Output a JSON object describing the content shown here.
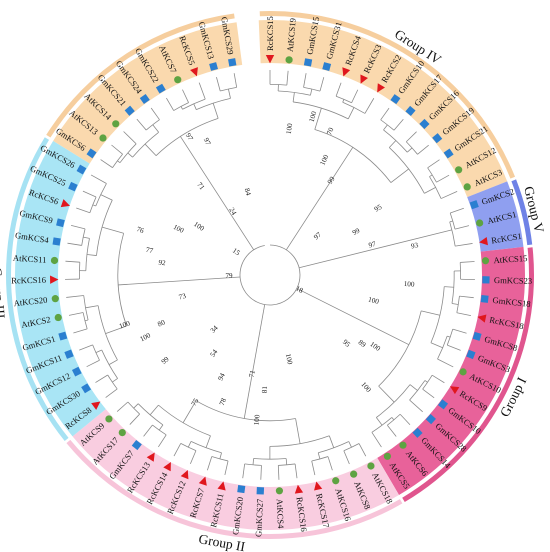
{
  "figure": {
    "groups": [
      {
        "id": "IV",
        "label": "Group IV",
        "fill": "#fad9ae",
        "band": "#f6ce9e"
      },
      {
        "id": "V",
        "label": "Group V",
        "fill": "#8f9ff0",
        "band": "#6f82e6"
      },
      {
        "id": "I",
        "label": "Group I",
        "fill": "#e8629a",
        "band": "#e0558e"
      },
      {
        "id": "II",
        "label": "Group II",
        "fill": "#f9cde0",
        "band": "#f7c4d9"
      },
      {
        "id": "III",
        "label": "Group III",
        "fill": "#a9e5f5",
        "band": "#a6e2f3"
      }
    ],
    "leaves": [
      {
        "name": "RcKCS15",
        "marker": "triangle",
        "group": "IV"
      },
      {
        "name": "AtKCS19",
        "marker": "circle",
        "group": "IV"
      },
      {
        "name": "GmKCS15",
        "marker": "square",
        "group": "IV"
      },
      {
        "name": "GmKCS31",
        "marker": "square",
        "group": "IV"
      },
      {
        "name": "RcKCS4",
        "marker": "triangle",
        "group": "IV"
      },
      {
        "name": "RcKCS3",
        "marker": "triangle",
        "group": "IV"
      },
      {
        "name": "RcKCS2",
        "marker": "triangle",
        "group": "IV"
      },
      {
        "name": "GmKCS10",
        "marker": "square",
        "group": "IV"
      },
      {
        "name": "GmKCS17",
        "marker": "square",
        "group": "IV"
      },
      {
        "name": "GmKCS16",
        "marker": "square",
        "group": "IV"
      },
      {
        "name": "GmKCS19",
        "marker": "square",
        "group": "IV"
      },
      {
        "name": "GmKCS21",
        "marker": "square",
        "group": "IV"
      },
      {
        "name": "AtKCS12",
        "marker": "circle",
        "group": "IV"
      },
      {
        "name": "AtKCS3",
        "marker": "circle",
        "group": "IV"
      },
      {
        "name": "GmKCS2",
        "marker": "square",
        "group": "V"
      },
      {
        "name": "AtKCS1",
        "marker": "circle",
        "group": "V"
      },
      {
        "name": "RcKCS1",
        "marker": "triangle",
        "group": "V"
      },
      {
        "name": "AtKCS15",
        "marker": "circle",
        "group": "I"
      },
      {
        "name": "GmKCS23",
        "marker": "square",
        "group": "I"
      },
      {
        "name": "GmKCS18",
        "marker": "square",
        "group": "I"
      },
      {
        "name": "RcKCS18",
        "marker": "triangle",
        "group": "I"
      },
      {
        "name": "GmKCS8",
        "marker": "square",
        "group": "I"
      },
      {
        "name": "GmKCS3",
        "marker": "square",
        "group": "I"
      },
      {
        "name": "AtKCS10",
        "marker": "circle",
        "group": "I"
      },
      {
        "name": "RcKCS9",
        "marker": "triangle",
        "group": "I"
      },
      {
        "name": "GmKCS10",
        "marker": "square",
        "group": "I"
      },
      {
        "name": "GmKCS28",
        "marker": "square",
        "group": "I"
      },
      {
        "name": "GmKCS14",
        "marker": "square",
        "group": "I"
      },
      {
        "name": "AtKCS6",
        "marker": "circle",
        "group": "I"
      },
      {
        "name": "AtKCS5",
        "marker": "circle",
        "group": "I"
      },
      {
        "name": "AtKCS18",
        "marker": "circle",
        "group": "II"
      },
      {
        "name": "AtKCS8",
        "marker": "circle",
        "group": "II"
      },
      {
        "name": "AtKCS16",
        "marker": "circle",
        "group": "II"
      },
      {
        "name": "RcKCS17",
        "marker": "triangle",
        "group": "II"
      },
      {
        "name": "RcKCS16",
        "marker": "triangle",
        "group": "II"
      },
      {
        "name": "AtKCS4",
        "marker": "circle",
        "group": "II"
      },
      {
        "name": "GmKCS27",
        "marker": "square",
        "group": "II"
      },
      {
        "name": "GmKCS20",
        "marker": "square",
        "group": "II"
      },
      {
        "name": "RcKCS11",
        "marker": "triangle",
        "group": "II"
      },
      {
        "name": "RcKCS7",
        "marker": "triangle",
        "group": "II"
      },
      {
        "name": "RcKCS12",
        "marker": "triangle",
        "group": "II"
      },
      {
        "name": "RcKCS14",
        "marker": "triangle",
        "group": "II"
      },
      {
        "name": "RcKCS13",
        "marker": "triangle",
        "group": "II"
      },
      {
        "name": "GmKCS7",
        "marker": "square",
        "group": "II"
      },
      {
        "name": "AtKCS17",
        "marker": "circle",
        "group": "II"
      },
      {
        "name": "AtKCS9",
        "marker": "circle",
        "group": "II"
      },
      {
        "name": "RcKCS8",
        "marker": "triangle",
        "group": "III"
      },
      {
        "name": "GmKCS30",
        "marker": "square",
        "group": "III"
      },
      {
        "name": "GmKCS12",
        "marker": "square",
        "group": "III"
      },
      {
        "name": "GmKCS11",
        "marker": "square",
        "group": "III"
      },
      {
        "name": "GmKCS1",
        "marker": "square",
        "group": "III"
      },
      {
        "name": "AtKCS2",
        "marker": "circle",
        "group": "III"
      },
      {
        "name": "AtKCS20",
        "marker": "circle",
        "group": "III"
      },
      {
        "name": "RcKCS16",
        "marker": "triangle",
        "group": "III"
      },
      {
        "name": "AtKCS11",
        "marker": "circle",
        "group": "III"
      },
      {
        "name": "GmKCS4",
        "marker": "square",
        "group": "III"
      },
      {
        "name": "GmKCS9",
        "marker": "square",
        "group": "III"
      },
      {
        "name": "RcKCS6",
        "marker": "triangle",
        "group": "III"
      },
      {
        "name": "GmKCS25",
        "marker": "square",
        "group": "III"
      },
      {
        "name": "GmKCS26",
        "marker": "square",
        "group": "III"
      },
      {
        "name": "GmKCS6",
        "marker": "square",
        "group": "IV"
      },
      {
        "name": "AtKCS13",
        "marker": "circle",
        "group": "IV"
      },
      {
        "name": "AtKCS14",
        "marker": "circle",
        "group": "IV"
      },
      {
        "name": "GmKCS21",
        "marker": "square",
        "group": "IV"
      },
      {
        "name": "GmKCS24",
        "marker": "square",
        "group": "IV"
      },
      {
        "name": "GmKCS22",
        "marker": "square",
        "group": "IV"
      },
      {
        "name": "AtKCS7",
        "marker": "circle",
        "group": "IV"
      },
      {
        "name": "RcKCS5",
        "marker": "triangle",
        "group": "IV"
      },
      {
        "name": "GmKCS13",
        "marker": "square",
        "group": "IV"
      },
      {
        "name": "GmKCS29",
        "marker": "square",
        "group": "IV"
      }
    ],
    "marker_colors": {
      "circle": "#5ea342",
      "square": "#2b7fd0",
      "triangle": "#e0171e"
    },
    "bootstrap": [
      {
        "value": "100",
        "at": 1.5,
        "r": 0.72
      },
      {
        "value": "100",
        "at": 5,
        "r": 0.62
      },
      {
        "value": "99",
        "at": 6.5,
        "r": 0.55
      },
      {
        "value": "70",
        "at": 4.5,
        "r": 0.76
      },
      {
        "value": "95",
        "at": 11.5,
        "r": 0.62
      },
      {
        "value": "99",
        "at": 12.5,
        "r": 0.47
      },
      {
        "value": "97",
        "at": 14.5,
        "r": 0.52
      },
      {
        "value": "93",
        "at": 15.5,
        "r": 0.72
      },
      {
        "value": "18",
        "at": 23,
        "r": 0.16
      },
      {
        "value": "100",
        "at": 18.5,
        "r": 0.68
      },
      {
        "value": "100",
        "at": 20.5,
        "r": 0.52
      },
      {
        "value": "100",
        "at": 24.5,
        "r": 0.62
      },
      {
        "value": "89",
        "at": 25,
        "r": 0.56
      },
      {
        "value": "95",
        "at": 26,
        "r": 0.5
      },
      {
        "value": "100",
        "at": 27.5,
        "r": 0.72
      },
      {
        "value": "100",
        "at": 33,
        "r": 0.42
      },
      {
        "value": "81",
        "at": 36,
        "r": 0.56
      },
      {
        "value": "71",
        "at": 37.5,
        "r": 0.49
      },
      {
        "value": "100",
        "at": 36.5,
        "r": 0.71
      },
      {
        "value": "78",
        "at": 39.5,
        "r": 0.66
      },
      {
        "value": "94",
        "at": 40.5,
        "r": 0.55
      },
      {
        "value": "75",
        "at": 41.5,
        "r": 0.72
      },
      {
        "value": "54",
        "at": 42.5,
        "r": 0.47
      },
      {
        "value": "34",
        "at": 44.5,
        "r": 0.38
      },
      {
        "value": "99",
        "at": 45.5,
        "r": 0.66
      },
      {
        "value": "80",
        "at": 48.5,
        "r": 0.58
      },
      {
        "value": "73",
        "at": 50.5,
        "r": 0.44
      },
      {
        "value": "100",
        "at": 48,
        "r": 0.68
      },
      {
        "value": "100",
        "at": 49.5,
        "r": 0.75
      },
      {
        "value": "79",
        "at": 53,
        "r": 0.2
      },
      {
        "value": "92",
        "at": 54.5,
        "r": 0.53
      },
      {
        "value": "77",
        "at": 55.5,
        "r": 0.6
      },
      {
        "value": "76",
        "at": 57,
        "r": 0.67
      },
      {
        "value": "100",
        "at": 58.5,
        "r": 0.5
      },
      {
        "value": "100",
        "at": 60,
        "r": 0.42
      },
      {
        "value": "15",
        "at": 60,
        "r": 0.2
      },
      {
        "value": "71",
        "at": 63.5,
        "r": 0.55
      },
      {
        "value": "97",
        "at": 65,
        "r": 0.78
      },
      {
        "value": "97",
        "at": 66,
        "r": 0.72
      },
      {
        "value": "24",
        "at": 65,
        "r": 0.36
      },
      {
        "value": "84",
        "at": 68,
        "r": 0.42
      },
      {
        "value": "97",
        "at": 10,
        "r": 0.3
      },
      {
        "value": "100",
        "at": 3,
        "r": 0.8
      }
    ]
  }
}
